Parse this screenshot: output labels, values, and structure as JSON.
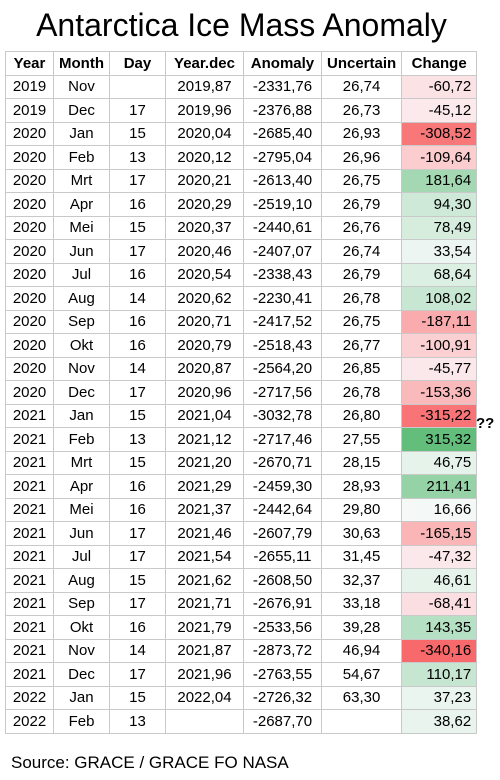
{
  "title": "Antarctica Ice Mass Anomaly",
  "headers": [
    "Year",
    "Month",
    "Day",
    "Year.dec",
    "Anomaly",
    "Uncertain",
    "Change"
  ],
  "rows": [
    {
      "year": "2019",
      "month": "Nov",
      "day": "",
      "yeardec": "2019,87",
      "anomaly": "-2331,76",
      "uncertain": "26,74",
      "change": "-60,72",
      "change_value": -60.72
    },
    {
      "year": "2019",
      "month": "Dec",
      "day": "17",
      "yeardec": "2019,96",
      "anomaly": "-2376,88",
      "uncertain": "26,73",
      "change": "-45,12",
      "change_value": -45.12
    },
    {
      "year": "2020",
      "month": "Jan",
      "day": "15",
      "yeardec": "2020,04",
      "anomaly": "-2685,40",
      "uncertain": "26,93",
      "change": "-308,52",
      "change_value": -308.52
    },
    {
      "year": "2020",
      "month": "Feb",
      "day": "13",
      "yeardec": "2020,12",
      "anomaly": "-2795,04",
      "uncertain": "26,96",
      "change": "-109,64",
      "change_value": -109.64
    },
    {
      "year": "2020",
      "month": "Mrt",
      "day": "17",
      "yeardec": "2020,21",
      "anomaly": "-2613,40",
      "uncertain": "26,75",
      "change": "181,64",
      "change_value": 181.64
    },
    {
      "year": "2020",
      "month": "Apr",
      "day": "16",
      "yeardec": "2020,29",
      "anomaly": "-2519,10",
      "uncertain": "26,79",
      "change": "94,30",
      "change_value": 94.3
    },
    {
      "year": "2020",
      "month": "Mei",
      "day": "15",
      "yeardec": "2020,37",
      "anomaly": "-2440,61",
      "uncertain": "26,76",
      "change": "78,49",
      "change_value": 78.49
    },
    {
      "year": "2020",
      "month": "Jun",
      "day": "17",
      "yeardec": "2020,46",
      "anomaly": "-2407,07",
      "uncertain": "26,74",
      "change": "33,54",
      "change_value": 33.54
    },
    {
      "year": "2020",
      "month": "Jul",
      "day": "16",
      "yeardec": "2020,54",
      "anomaly": "-2338,43",
      "uncertain": "26,79",
      "change": "68,64",
      "change_value": 68.64
    },
    {
      "year": "2020",
      "month": "Aug",
      "day": "14",
      "yeardec": "2020,62",
      "anomaly": "-2230,41",
      "uncertain": "26,78",
      "change": "108,02",
      "change_value": 108.02
    },
    {
      "year": "2020",
      "month": "Sep",
      "day": "16",
      "yeardec": "2020,71",
      "anomaly": "-2417,52",
      "uncertain": "26,75",
      "change": "-187,11",
      "change_value": -187.11
    },
    {
      "year": "2020",
      "month": "Okt",
      "day": "16",
      "yeardec": "2020,79",
      "anomaly": "-2518,43",
      "uncertain": "26,77",
      "change": "-100,91",
      "change_value": -100.91
    },
    {
      "year": "2020",
      "month": "Nov",
      "day": "14",
      "yeardec": "2020,87",
      "anomaly": "-2564,20",
      "uncertain": "26,85",
      "change": "-45,77",
      "change_value": -45.77
    },
    {
      "year": "2020",
      "month": "Dec",
      "day": "17",
      "yeardec": "2020,96",
      "anomaly": "-2717,56",
      "uncertain": "26,78",
      "change": "-153,36",
      "change_value": -153.36
    },
    {
      "year": "2021",
      "month": "Jan",
      "day": "15",
      "yeardec": "2021,04",
      "anomaly": "-3032,78",
      "uncertain": "26,80",
      "change": "-315,22",
      "change_value": -315.22
    },
    {
      "year": "2021",
      "month": "Feb",
      "day": "13",
      "yeardec": "2021,12",
      "anomaly": "-2717,46",
      "uncertain": "27,55",
      "change": "315,32",
      "change_value": 315.32
    },
    {
      "year": "2021",
      "month": "Mrt",
      "day": "15",
      "yeardec": "2021,20",
      "anomaly": "-2670,71",
      "uncertain": "28,15",
      "change": "46,75",
      "change_value": 46.75
    },
    {
      "year": "2021",
      "month": "Apr",
      "day": "16",
      "yeardec": "2021,29",
      "anomaly": "-2459,30",
      "uncertain": "28,93",
      "change": "211,41",
      "change_value": 211.41
    },
    {
      "year": "2021",
      "month": "Mei",
      "day": "16",
      "yeardec": "2021,37",
      "anomaly": "-2442,64",
      "uncertain": "29,80",
      "change": "16,66",
      "change_value": 16.66
    },
    {
      "year": "2021",
      "month": "Jun",
      "day": "17",
      "yeardec": "2021,46",
      "anomaly": "-2607,79",
      "uncertain": "30,63",
      "change": "-165,15",
      "change_value": -165.15
    },
    {
      "year": "2021",
      "month": "Jul",
      "day": "17",
      "yeardec": "2021,54",
      "anomaly": "-2655,11",
      "uncertain": "31,45",
      "change": "-47,32",
      "change_value": -47.32
    },
    {
      "year": "2021",
      "month": "Aug",
      "day": "15",
      "yeardec": "2021,62",
      "anomaly": "-2608,50",
      "uncertain": "32,37",
      "change": "46,61",
      "change_value": 46.61
    },
    {
      "year": "2021",
      "month": "Sep",
      "day": "17",
      "yeardec": "2021,71",
      "anomaly": "-2676,91",
      "uncertain": "33,18",
      "change": "-68,41",
      "change_value": -68.41
    },
    {
      "year": "2021",
      "month": "Okt",
      "day": "16",
      "yeardec": "2021,79",
      "anomaly": "-2533,56",
      "uncertain": "39,28",
      "change": "143,35",
      "change_value": 143.35
    },
    {
      "year": "2021",
      "month": "Nov",
      "day": "14",
      "yeardec": "2021,87",
      "anomaly": "-2873,72",
      "uncertain": "46,94",
      "change": "-340,16",
      "change_value": -340.16
    },
    {
      "year": "2021",
      "month": "Dec",
      "day": "17",
      "yeardec": "2021,96",
      "anomaly": "-2763,55",
      "uncertain": "54,67",
      "change": "110,17",
      "change_value": 110.17
    },
    {
      "year": "2022",
      "month": "Jan",
      "day": "15",
      "yeardec": "2022,04",
      "anomaly": "-2726,32",
      "uncertain": "63,30",
      "change": "37,23",
      "change_value": 37.23
    },
    {
      "year": "2022",
      "month": "Feb",
      "day": "13",
      "yeardec": "",
      "anomaly": "-2687,70",
      "uncertain": "",
      "change": "38,62",
      "change_value": 38.62
    }
  ],
  "question_marks": "??",
  "source": "Source: GRACE / GRACE FO  NASA",
  "colors": {
    "negative_max": "#f8696b",
    "positive_max": "#63be7b",
    "neutral": "#fcfcff",
    "border": "#c9c9c9"
  }
}
